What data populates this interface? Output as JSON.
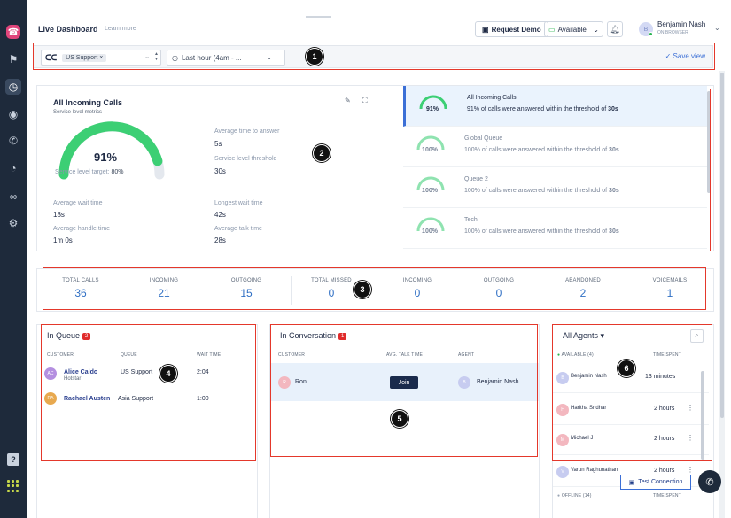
{
  "sidebar": {
    "items": [
      "flag-icon",
      "dashboard-icon",
      "user-icon",
      "calls-icon",
      "history-icon",
      "voicemail-icon",
      "settings-icon"
    ],
    "help": "?"
  },
  "topbar": {
    "title": "Live Dashboard",
    "learn_more": "Learn more",
    "request_demo": "Request Demo",
    "availability": "Available",
    "user_name": "Benjamin Nash",
    "user_sub": "ON BROWSER",
    "user_initials": "B"
  },
  "filter": {
    "queue_chip": "US Support ×",
    "time_range": "Last hour (4am - ...",
    "save_view": "✓ Save view"
  },
  "service_level": {
    "title": "All Incoming Calls",
    "subtitle": "Service level metrics",
    "value": "91%",
    "gauge_fraction": 0.91,
    "target_label": "Service level target:",
    "target_value": "80%",
    "metrics": [
      {
        "key": "Average time to answer",
        "value": "5s"
      },
      {
        "key": "Service level threshold",
        "value": "30s"
      },
      {
        "key": "Average wait time",
        "value": "18s"
      },
      {
        "key": "Longest wait time",
        "value": "42s"
      },
      {
        "key": "Average handle time",
        "value": "1m 0s"
      },
      {
        "key": "Average talk time",
        "value": "28s"
      }
    ]
  },
  "queues": [
    {
      "pct": "91%",
      "name": "All Incoming Calls",
      "desc": "91% of calls were answered within the threshold of ",
      "threshold": "30s"
    },
    {
      "pct": "100%",
      "name": "Global Queue",
      "desc": "100% of calls were answered within the threshold of ",
      "threshold": "30s"
    },
    {
      "pct": "100%",
      "name": "Queue 2",
      "desc": "100% of calls were answered within the threshold of ",
      "threshold": "30s"
    },
    {
      "pct": "100%",
      "name": "Tech",
      "desc": "100% of calls were answered within the threshold of ",
      "threshold": "30s"
    }
  ],
  "stats": [
    {
      "label": "TOTAL CALLS",
      "value": "36"
    },
    {
      "label": "INCOMING",
      "value": "21"
    },
    {
      "label": "OUTGOING",
      "value": "15"
    },
    {
      "label": "TOTAL MISSED",
      "value": "0"
    },
    {
      "label": "INCOMING",
      "value": "0"
    },
    {
      "label": "OUTGOING",
      "value": "0"
    },
    {
      "label": "ABANDONED",
      "value": "2"
    },
    {
      "label": "VOICEMAILS",
      "value": "1"
    }
  ],
  "in_queue": {
    "title": "In Queue",
    "count": "2",
    "columns": [
      "CUSTOMER",
      "QUEUE",
      "WAIT TIME"
    ],
    "rows": [
      {
        "initials": "AC",
        "name": "Alice Caldo",
        "company": "Hotstar",
        "queue": "US Support",
        "wait": "2:04",
        "color": "#b48fe0"
      },
      {
        "initials": "RA",
        "name": "Rachael Austen",
        "company": "",
        "queue": "Asia Support",
        "wait": "1:00",
        "color": "#e8a94f"
      }
    ]
  },
  "in_conversation": {
    "title": "In Conversation",
    "count": "1",
    "columns": [
      "CUSTOMER",
      "AVG. TALK TIME",
      "AGENT"
    ],
    "row": {
      "customer_initial": "R",
      "customer": "Ron",
      "action": "Join",
      "agent_initial": "B",
      "agent": "Benjamin Nash"
    }
  },
  "agents": {
    "title": "All Agents ▾",
    "available_label": "AVAILABLE (4)",
    "time_col": "TIME SPENT",
    "rows": [
      {
        "initial": "B",
        "name": "Benjamin Nash",
        "time": "13 minutes",
        "color": "#c7ccf0"
      },
      {
        "initial": "H",
        "name": "Haritha Sridhar",
        "time": "2 hours",
        "color": "#f3b7bf"
      },
      {
        "initial": "M",
        "name": "Michael J",
        "time": "2 hours",
        "color": "#f3b7bf"
      },
      {
        "initial": "V",
        "name": "Varun Raghunathan",
        "time": "2 hours",
        "color": "#c7ccf0"
      }
    ],
    "offline_label": "OFFLINE (14)",
    "offline_time_col": "TIME SPENT"
  },
  "test_connection": "Test Connection",
  "annotations": [
    "1",
    "2",
    "3",
    "4",
    "5",
    "6"
  ]
}
